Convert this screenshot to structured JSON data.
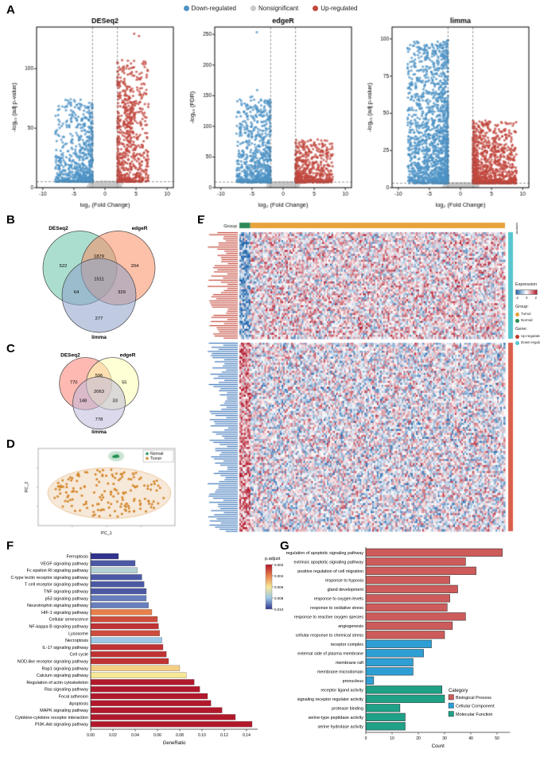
{
  "panel_labels": {
    "A": "A",
    "B": "B",
    "C": "C",
    "D": "D",
    "E": "E",
    "F": "F",
    "G": "G"
  },
  "top_legend": {
    "items": [
      {
        "label": "Down-regulated",
        "color": "#4E93C6"
      },
      {
        "label": "Nonsignificant",
        "color": "#C8C8C8"
      },
      {
        "label": "Up-regulated",
        "color": "#C2473D"
      }
    ]
  },
  "heatmap_legend": {
    "expression_title": "Expression",
    "expression_ticks": [
      "-2",
      "0",
      "2"
    ],
    "group_title": "Group:",
    "group_items": [
      {
        "label": "Tumor",
        "color": "#E8A33D"
      },
      {
        "label": "Normal",
        "color": "#2E8B57"
      }
    ],
    "gene_title": "Gene:",
    "gene_items": [
      {
        "label": "Up-regulated",
        "color": "#C0392B"
      },
      {
        "label": "Down-regulated",
        "color": "#56C6CF"
      }
    ]
  },
  "chart_data": [
    {
      "id": "volcano_deseq2",
      "type": "scatter",
      "variant": "volcano",
      "title": "DESeq2",
      "xlabel": "log₂ (Fold Change)",
      "ylabel": "-log₁₀ (adj p-value)",
      "xlim": [
        -11,
        11
      ],
      "ylim": [
        0,
        135
      ],
      "xticks": [
        -10,
        -5,
        0,
        5,
        10
      ],
      "yticks": [
        0,
        50,
        100
      ],
      "fc_threshold": 2,
      "sig_y": 5,
      "seed": 11,
      "colors": {
        "down": "#4E93C6",
        "ns": "#C8C8C8",
        "up": "#C2473D"
      },
      "ns": {
        "n": 2400,
        "xs": 2.0
      },
      "down": {
        "n": 720,
        "xspread": 6,
        "pow": 2.3,
        "ymax": 0.55
      },
      "up": {
        "n": 620,
        "xspread": 5,
        "pow": 2.1,
        "ymax": 0.8
      },
      "extras": [
        {
          "n": 90,
          "x": 4.0,
          "xs": 0.8,
          "y": 60,
          "ys": 22,
          "c": "up"
        },
        {
          "n": 2,
          "x": 5.5,
          "xs": 0.8,
          "y": 128,
          "ys": 3,
          "c": "up"
        },
        {
          "n": 1,
          "x": -6,
          "xs": 0.5,
          "y": 75,
          "ys": 1,
          "c": "down"
        }
      ]
    },
    {
      "id": "volcano_edger",
      "type": "scatter",
      "variant": "volcano",
      "title": "edgeR",
      "xlabel": "log₂ (Fold Change)",
      "ylabel": "-log₁₀ (FDR)",
      "xlim": [
        -11,
        11
      ],
      "ylim": [
        0,
        262
      ],
      "xticks": [
        -10,
        -5,
        0,
        5,
        10
      ],
      "yticks": [
        0,
        50,
        100,
        150,
        200,
        250
      ],
      "fc_threshold": 2,
      "sig_y": 9,
      "seed": 22,
      "colors": {
        "down": "#4E93C6",
        "ns": "#C8C8C8",
        "up": "#C2473D"
      },
      "ns": {
        "n": 2200,
        "xs": 1.9
      },
      "down": {
        "n": 760,
        "xspread": 5.5,
        "pow": 2.5,
        "ymax": 0.55
      },
      "up": {
        "n": 560,
        "xspread": 6,
        "pow": 2.6,
        "ymax": 0.3
      },
      "extras": [
        {
          "n": 1,
          "x": -4.2,
          "xs": 0.3,
          "y": 252,
          "ys": 2,
          "c": "down"
        },
        {
          "n": 5,
          "x": -4.6,
          "xs": 1.2,
          "y": 150,
          "ys": 12,
          "c": "down"
        },
        {
          "n": 8,
          "x": -4.0,
          "xs": 1.5,
          "y": 115,
          "ys": 10,
          "c": "down"
        }
      ]
    },
    {
      "id": "volcano_limma",
      "type": "scatter",
      "variant": "volcano",
      "title": "limma",
      "xlabel": "log₂ (Fold Change)",
      "ylabel": "-log₁₀ (adj p-value)",
      "xlim": [
        -11,
        11
      ],
      "ylim": [
        0,
        108
      ],
      "xticks": [
        -10,
        -5,
        0,
        5,
        10
      ],
      "yticks": [
        0,
        25,
        50,
        75,
        100
      ],
      "fc_threshold": 2,
      "sig_y": 3,
      "seed": 33,
      "colors": {
        "down": "#4E93C6",
        "ns": "#C8C8C8",
        "up": "#C2473D"
      },
      "ns": {
        "n": 2600,
        "xs": 2.1
      },
      "down": {
        "n": 1500,
        "xspread": 6.5,
        "pow": 1.7,
        "ymax": 0.92
      },
      "up": {
        "n": 1000,
        "xspread": 7,
        "pow": 2.2,
        "ymax": 0.42
      },
      "extras": [
        {
          "n": 6,
          "x": -2.8,
          "xs": 1.2,
          "y": 97,
          "ys": 4,
          "c": "down"
        }
      ]
    },
    {
      "id": "venn_up",
      "type": "venn",
      "sets": [
        "DESeq2",
        "edgeR",
        "limma"
      ],
      "counts": {
        "A": "522",
        "B": "204",
        "C": "277",
        "AB": "1879",
        "AC": "64",
        "BC": "329",
        "ABC": "1511"
      },
      "colors": [
        "#66C2A5",
        "#FC8D62",
        "#8DA0CB"
      ]
    },
    {
      "id": "venn_down",
      "type": "venn",
      "sets": [
        "DESeq2",
        "edgeR",
        "limma"
      ],
      "counts": {
        "A": "770",
        "B": "55",
        "C": "778",
        "AB": "596",
        "AC": "148",
        "BC": "33",
        "ABC": "2063"
      },
      "colors": [
        "#FB8072",
        "#FFFFB3",
        "#BEBADA"
      ]
    },
    {
      "id": "pca",
      "type": "scatter",
      "variant": "cluster",
      "xlabel": "PC_1",
      "ylabel": "PC_2",
      "seed": 7,
      "groups": [
        {
          "name": "Normal",
          "color": "#1F9150",
          "n": 9
        },
        {
          "name": "Tumor",
          "color": "#D4862A",
          "n": 165
        }
      ]
    },
    {
      "id": "heatmap",
      "type": "heatmap",
      "cols": 170,
      "rows_up": 54,
      "rows_down": 94,
      "normal_cols": 7,
      "seed": 5,
      "palette": {
        "low": "#2166AC",
        "mid": "#FFFFFF",
        "high": "#B2182B"
      },
      "group_colors": {
        "Tumor": "#E8A33D",
        "Normal": "#2E8B57"
      },
      "gene_bar_colors": {
        "top": "#56C6CF",
        "bottom": "#D95F4C"
      },
      "gene_text_colors": {
        "top": "#C0392B",
        "bottom": "#2F6DB5"
      },
      "labels": {
        "group": "Group",
        "gene": "Gene"
      }
    },
    {
      "id": "kegg",
      "type": "bar",
      "orientation": "horizontal",
      "xlabel": "GeneRatio",
      "xlim": [
        0,
        0.15
      ],
      "xticks": [
        0,
        0.02,
        0.04,
        0.06,
        0.08,
        0.1,
        0.12,
        0.14
      ],
      "colorbar": {
        "title": "p.adjust",
        "min": 0.002,
        "max": 0.01,
        "ticks": [
          0.002,
          0.004,
          0.006,
          0.008,
          0.01
        ],
        "stops": [
          "#B2182B",
          "#E8804C",
          "#F7E897",
          "#9CC8E8",
          "#30348F"
        ]
      },
      "items": [
        {
          "label": "Ferroptosis",
          "value": 0.025,
          "p": 0.01
        },
        {
          "label": "VEGF signaling pathway",
          "value": 0.04,
          "p": 0.0095
        },
        {
          "label": "Fc epsilon RI signaling pathway",
          "value": 0.042,
          "p": 0.0075
        },
        {
          "label": "C-type lectin receptor signaling pathway",
          "value": 0.046,
          "p": 0.0095
        },
        {
          "label": "T cell receptor signaling pathway",
          "value": 0.048,
          "p": 0.0095
        },
        {
          "label": "TNF signaling pathway",
          "value": 0.05,
          "p": 0.0095
        },
        {
          "label": "p53 signaling pathway",
          "value": 0.05,
          "p": 0.009
        },
        {
          "label": "Neurotrophin signaling pathway",
          "value": 0.052,
          "p": 0.009
        },
        {
          "label": "HIF-1 signaling pathway",
          "value": 0.055,
          "p": 0.004
        },
        {
          "label": "Cellular senescence",
          "value": 0.06,
          "p": 0.003
        },
        {
          "label": "NF-kappa B signaling pathway",
          "value": 0.061,
          "p": 0.0025
        },
        {
          "label": "Lysosome",
          "value": 0.062,
          "p": 0.003
        },
        {
          "label": "Necroptosis",
          "value": 0.064,
          "p": 0.008
        },
        {
          "label": "IL-17 signaling pathway",
          "value": 0.065,
          "p": 0.0025
        },
        {
          "label": "Cell cycle",
          "value": 0.068,
          "p": 0.0025
        },
        {
          "label": "NOD-like receptor signaling pathway",
          "value": 0.07,
          "p": 0.0025
        },
        {
          "label": "Rap1 signaling pathway",
          "value": 0.08,
          "p": 0.0055
        },
        {
          "label": "Calcium signaling pathway",
          "value": 0.086,
          "p": 0.006
        },
        {
          "label": "Regulation of actin cytoskeleton",
          "value": 0.093,
          "p": 0.002
        },
        {
          "label": "Ras signaling pathway",
          "value": 0.098,
          "p": 0.002
        },
        {
          "label": "Focal adhesion",
          "value": 0.105,
          "p": 0.002
        },
        {
          "label": "Apoptosis",
          "value": 0.108,
          "p": 0.002
        },
        {
          "label": "MAPK signaling pathway",
          "value": 0.118,
          "p": 0.002
        },
        {
          "label": "Cytokine-cytokine receptor interaction",
          "value": 0.13,
          "p": 0.002
        },
        {
          "label": "PI3K-Akt signaling pathway",
          "value": 0.145,
          "p": 0.002
        }
      ]
    },
    {
      "id": "go",
      "type": "bar",
      "orientation": "horizontal",
      "xlabel": "Count",
      "xlim": [
        0,
        55
      ],
      "xticks": [
        0,
        10,
        20,
        30,
        40,
        50
      ],
      "legend": {
        "title": "Category",
        "items": [
          {
            "label": "Biological Process",
            "color": "#CD5B5B"
          },
          {
            "label": "Cellular Component",
            "color": "#2E9FD4"
          },
          {
            "label": "Molecular Function",
            "color": "#1FA187"
          }
        ]
      },
      "items": [
        {
          "label": "regulation of apoptotic signaling pathway",
          "value": 52,
          "category": "Biological Process"
        },
        {
          "label": "extrinsic apoptotic signaling pathway",
          "value": 38,
          "category": "Biological Process"
        },
        {
          "label": "positive regulation of cell migration",
          "value": 42,
          "category": "Biological Process"
        },
        {
          "label": "response to hypoxia",
          "value": 32,
          "category": "Biological Process"
        },
        {
          "label": "gland development",
          "value": 35,
          "category": "Biological Process"
        },
        {
          "label": "response to oxygen levels",
          "value": 32,
          "category": "Biological Process"
        },
        {
          "label": "response to oxidative stress",
          "value": 31,
          "category": "Biological Process"
        },
        {
          "label": "response to reactive oxygen species",
          "value": 38,
          "category": "Biological Process"
        },
        {
          "label": "angiogenesis",
          "value": 33,
          "category": "Biological Process"
        },
        {
          "label": "cellular response to chemical stress",
          "value": 30,
          "category": "Biological Process"
        },
        {
          "label": "receptor complex",
          "value": 25,
          "category": "Cellular Component"
        },
        {
          "label": "external side of plasma membrane",
          "value": 22,
          "category": "Cellular Component"
        },
        {
          "label": "membrane raft",
          "value": 18,
          "category": "Cellular Component"
        },
        {
          "label": "membrane microdomain",
          "value": 18,
          "category": "Cellular Component"
        },
        {
          "label": "pronucleus",
          "value": 3,
          "category": "Cellular Component"
        },
        {
          "label": "receptor ligand activity",
          "value": 29,
          "category": "Molecular Function"
        },
        {
          "label": "signaling receptor regulator activity",
          "value": 30,
          "category": "Molecular Function"
        },
        {
          "label": "protease binding",
          "value": 13,
          "category": "Molecular Function"
        },
        {
          "label": "serine-type peptidase activity",
          "value": 15,
          "category": "Molecular Function"
        },
        {
          "label": "serine hydrolase activity",
          "value": 15,
          "category": "Molecular Function"
        }
      ]
    }
  ]
}
